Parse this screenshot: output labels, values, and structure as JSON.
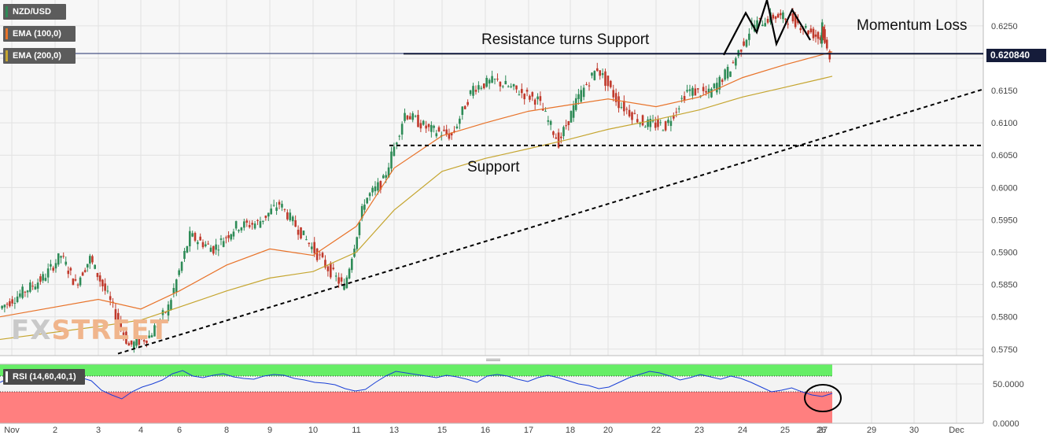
{
  "symbol": "NZD/USD",
  "legend": [
    {
      "label": "NZD/USD",
      "color": "#2e8b57"
    },
    {
      "label": "EMA (100,0)",
      "color": "#e8732a"
    },
    {
      "label": "EMA (200,0)",
      "color": "#c5a52f"
    }
  ],
  "rsi_label": "RSI (14,60,40,1)",
  "current_price": "0.620840",
  "watermark": {
    "part1": "FX",
    "part2": "STREET"
  },
  "annotations": {
    "resistance": "Resistance turns Support",
    "support": "Support",
    "momentum": "Momentum Loss"
  },
  "colors": {
    "up": "#2e8b57",
    "down": "#c0392b",
    "ema100": "#e8732a",
    "ema200": "#c5a52f",
    "rsi_line": "#1a3fd6",
    "rsi_upper": "#66ee66",
    "rsi_lower": "#ff7f7f",
    "price_tag": "#151c3a"
  },
  "chart_data": [
    {
      "type": "candlestick",
      "title": "NZD/USD",
      "ylim": [
        0.574,
        0.629
      ],
      "y_ticks": [
        "0.6250",
        "0.6200",
        "0.6150",
        "0.6100",
        "0.6050",
        "0.6000",
        "0.5950",
        "0.5900",
        "0.5850",
        "0.5800",
        "0.5750"
      ],
      "x_ticks": [
        "Nov",
        "2",
        "3",
        "4",
        "6",
        "8",
        "9",
        "10",
        "11",
        "13",
        "15",
        "16",
        "17",
        "18",
        "20",
        "22",
        "23",
        "24",
        "25",
        "26",
        "27",
        "29",
        "30",
        "Dec"
      ],
      "anchors": [
        [
          "Nov",
          0.5813
        ],
        [
          "Nov",
          0.586
        ],
        [
          "2",
          0.5895
        ],
        [
          "2",
          0.585
        ],
        [
          "2",
          0.589
        ],
        [
          "3",
          0.5832
        ],
        [
          "3",
          0.5755
        ],
        [
          "4",
          0.577
        ],
        [
          "4",
          0.5815
        ],
        [
          "6",
          0.5925
        ],
        [
          "6",
          0.5905
        ],
        [
          "8",
          0.594
        ],
        [
          "8",
          0.5945
        ],
        [
          "9",
          0.5975
        ],
        [
          "9",
          0.593
        ],
        [
          "10",
          0.5885
        ],
        [
          "10",
          0.5845
        ],
        [
          "11",
          0.598
        ],
        [
          "11",
          0.601
        ],
        [
          "13",
          0.6115
        ],
        [
          "13",
          0.609
        ],
        [
          "15",
          0.608
        ],
        [
          "15",
          0.6155
        ],
        [
          "16",
          0.6165
        ],
        [
          "16",
          0.615
        ],
        [
          "17",
          0.6135
        ],
        [
          "17",
          0.607
        ],
        [
          "18",
          0.614
        ],
        [
          "18",
          0.6185
        ],
        [
          "20",
          0.613
        ],
        [
          "20",
          0.61
        ],
        [
          "22",
          0.6095
        ],
        [
          "22",
          0.615
        ],
        [
          "23",
          0.6145
        ],
        [
          "23",
          0.6185
        ],
        [
          "24",
          0.625
        ],
        [
          "24",
          0.6265
        ],
        [
          "25",
          0.626
        ],
        [
          "25",
          0.624
        ],
        [
          "26",
          0.623
        ],
        [
          "26",
          0.6255
        ],
        [
          "27",
          0.622
        ],
        [
          "27",
          0.6205
        ]
      ],
      "ema100": [
        [
          "Nov",
          0.58
        ],
        [
          "3",
          0.5827
        ],
        [
          "4",
          0.5812
        ],
        [
          "6",
          0.584
        ],
        [
          "8",
          0.588
        ],
        [
          "9",
          0.5905
        ],
        [
          "10",
          0.5895
        ],
        [
          "11",
          0.594
        ],
        [
          "13",
          0.603
        ],
        [
          "15",
          0.608
        ],
        [
          "16",
          0.61
        ],
        [
          "17",
          0.6118
        ],
        [
          "18",
          0.6128
        ],
        [
          "20",
          0.6137
        ],
        [
          "22",
          0.6125
        ],
        [
          "23",
          0.614
        ],
        [
          "24",
          0.617
        ],
        [
          "25",
          0.619
        ],
        [
          "26",
          0.6205
        ],
        [
          "27",
          0.621
        ]
      ],
      "ema200": [
        [
          "Nov",
          0.5765
        ],
        [
          "3",
          0.5785
        ],
        [
          "4",
          0.5795
        ],
        [
          "6",
          0.5815
        ],
        [
          "8",
          0.584
        ],
        [
          "9",
          0.586
        ],
        [
          "10",
          0.587
        ],
        [
          "11",
          0.59
        ],
        [
          "13",
          0.5965
        ],
        [
          "15",
          0.6025
        ],
        [
          "16",
          0.6045
        ],
        [
          "17",
          0.606
        ],
        [
          "18",
          0.6075
        ],
        [
          "20",
          0.609
        ],
        [
          "22",
          0.6105
        ],
        [
          "23",
          0.612
        ],
        [
          "24",
          0.614
        ],
        [
          "25",
          0.6155
        ],
        [
          "26",
          0.6168
        ],
        [
          "27",
          0.6172
        ]
      ],
      "support_line": 0.6065,
      "resistance_line": 0.6207,
      "trendline": [
        [
          "3",
          0.5743
        ],
        [
          "Dec",
          0.6152
        ]
      ],
      "pattern_points": [
        [
          "23",
          0.6205
        ],
        [
          "24",
          0.627
        ],
        [
          "24",
          0.624
        ],
        [
          "25",
          0.629
        ],
        [
          "25",
          0.6222
        ],
        [
          "26",
          0.6275
        ],
        [
          "26",
          0.6228
        ]
      ]
    },
    {
      "type": "line",
      "title": "RSI (14,60,40,1)",
      "ylim": [
        0,
        75
      ],
      "y_ticks": [
        "50.0000",
        "0.0000"
      ],
      "upper_level": 60,
      "lower_level": 40,
      "values": [
        52,
        58,
        57,
        56,
        54,
        53,
        51,
        53,
        58,
        54,
        42,
        36,
        31,
        40,
        46,
        50,
        55,
        63,
        67,
        60,
        58,
        61,
        63,
        59,
        57,
        56,
        60,
        62,
        61,
        57,
        55,
        52,
        51,
        49,
        44,
        41,
        43,
        52,
        60,
        66,
        64,
        62,
        60,
        58,
        61,
        59,
        56,
        52,
        60,
        62,
        60,
        56,
        53,
        58,
        61,
        58,
        54,
        50,
        48,
        44,
        46,
        52,
        58,
        62,
        66,
        64,
        60,
        55,
        58,
        62,
        59,
        56,
        60,
        57,
        52,
        46,
        40,
        42,
        45,
        40,
        36,
        34,
        38
      ]
    }
  ]
}
